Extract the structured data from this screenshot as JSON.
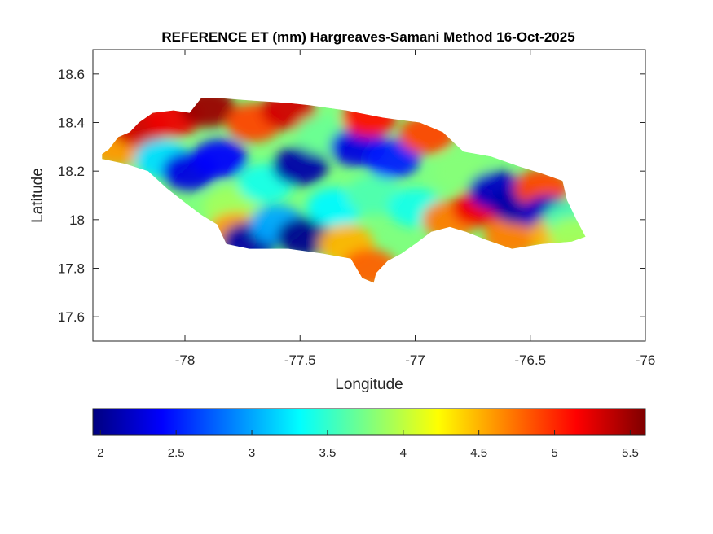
{
  "chart_data": {
    "type": "heatmap",
    "title": "REFERENCE ET (mm) Hargreaves-Samani Method  16-Oct-2025",
    "xlabel": "Longitude",
    "ylabel": "Latitude",
    "xlim": [
      -78.4,
      -76
    ],
    "ylim": [
      17.5,
      18.7
    ],
    "xticks": [
      -78,
      -77.5,
      -77,
      -76.5,
      -76
    ],
    "xtick_labels": [
      "-78",
      "-77.5",
      "-77",
      "-76.5",
      "-76"
    ],
    "yticks": [
      17.6,
      17.8,
      18,
      18.2,
      18.4,
      18.6
    ],
    "ytick_labels": [
      "17.6",
      "17.8",
      "18",
      "18.2",
      "18.4",
      "18.6"
    ],
    "grid": false,
    "colorbar": {
      "orientation": "horizontal",
      "placement": "bottom",
      "colormap": "jet",
      "range": [
        1.95,
        5.6
      ],
      "ticks": [
        2,
        2.5,
        3,
        3.5,
        4,
        4.5,
        5,
        5.5
      ],
      "tick_labels": [
        "2",
        "2.5",
        "3",
        "3.5",
        "4",
        "4.5",
        "5",
        "5.5"
      ],
      "colors": [
        "#00007f",
        "#0000ff",
        "#007fff",
        "#00ffff",
        "#7fff7f",
        "#ffff00",
        "#ff7f00",
        "#ff0000",
        "#7f0000"
      ]
    },
    "region_outline": [
      [
        -78.36,
        18.27
      ],
      [
        -78.33,
        18.29
      ],
      [
        -78.29,
        18.34
      ],
      [
        -78.24,
        18.36
      ],
      [
        -78.2,
        18.4
      ],
      [
        -78.14,
        18.44
      ],
      [
        -78.05,
        18.45
      ],
      [
        -77.98,
        18.44
      ],
      [
        -77.93,
        18.5
      ],
      [
        -77.84,
        18.5
      ],
      [
        -77.7,
        18.49
      ],
      [
        -77.55,
        18.48
      ],
      [
        -77.45,
        18.47
      ],
      [
        -77.3,
        18.45
      ],
      [
        -77.14,
        18.42
      ],
      [
        -76.98,
        18.4
      ],
      [
        -76.88,
        18.36
      ],
      [
        -76.79,
        18.28
      ],
      [
        -76.67,
        18.26
      ],
      [
        -76.55,
        18.22
      ],
      [
        -76.45,
        18.19
      ],
      [
        -76.36,
        18.16
      ],
      [
        -76.34,
        18.08
      ],
      [
        -76.3,
        18.0
      ],
      [
        -76.26,
        17.93
      ],
      [
        -76.32,
        17.91
      ],
      [
        -76.45,
        17.9
      ],
      [
        -76.58,
        17.88
      ],
      [
        -76.7,
        17.92
      ],
      [
        -76.78,
        17.95
      ],
      [
        -76.85,
        17.97
      ],
      [
        -76.93,
        17.95
      ],
      [
        -77.0,
        17.9
      ],
      [
        -77.06,
        17.86
      ],
      [
        -77.12,
        17.83
      ],
      [
        -77.17,
        17.78
      ],
      [
        -77.18,
        17.74
      ],
      [
        -77.23,
        17.76
      ],
      [
        -77.28,
        17.84
      ],
      [
        -77.4,
        17.86
      ],
      [
        -77.55,
        17.88
      ],
      [
        -77.72,
        17.88
      ],
      [
        -77.82,
        17.9
      ],
      [
        -77.86,
        17.98
      ],
      [
        -77.93,
        18.02
      ],
      [
        -78.0,
        18.07
      ],
      [
        -78.08,
        18.13
      ],
      [
        -78.16,
        18.2
      ],
      [
        -78.26,
        18.23
      ],
      [
        -78.36,
        18.25
      ]
    ],
    "values": [
      {
        "lon": -78.3,
        "lat": 18.3,
        "et": 4.6
      },
      {
        "lon": -78.2,
        "lat": 18.38,
        "et": 5.3
      },
      {
        "lon": -78.1,
        "lat": 18.25,
        "et": 3.2
      },
      {
        "lon": -78.05,
        "lat": 18.42,
        "et": 5.2
      },
      {
        "lon": -77.98,
        "lat": 18.2,
        "et": 2.3
      },
      {
        "lon": -77.9,
        "lat": 18.46,
        "et": 5.5
      },
      {
        "lon": -77.85,
        "lat": 18.25,
        "et": 2.4
      },
      {
        "lon": -77.8,
        "lat": 18.05,
        "et": 3.9
      },
      {
        "lon": -77.78,
        "lat": 17.95,
        "et": 4.6
      },
      {
        "lon": -77.72,
        "lat": 17.91,
        "et": 2.1
      },
      {
        "lon": -77.7,
        "lat": 18.4,
        "et": 4.9
      },
      {
        "lon": -77.65,
        "lat": 18.15,
        "et": 3.4
      },
      {
        "lon": -77.6,
        "lat": 17.98,
        "et": 3.0
      },
      {
        "lon": -77.55,
        "lat": 18.45,
        "et": 5.3
      },
      {
        "lon": -77.5,
        "lat": 18.22,
        "et": 2.1
      },
      {
        "lon": -77.48,
        "lat": 17.93,
        "et": 2.0
      },
      {
        "lon": -77.4,
        "lat": 18.35,
        "et": 3.7
      },
      {
        "lon": -77.35,
        "lat": 18.05,
        "et": 3.3
      },
      {
        "lon": -77.3,
        "lat": 17.9,
        "et": 4.5
      },
      {
        "lon": -77.25,
        "lat": 18.3,
        "et": 2.3
      },
      {
        "lon": -77.2,
        "lat": 18.42,
        "et": 5.1
      },
      {
        "lon": -77.18,
        "lat": 18.1,
        "et": 3.6
      },
      {
        "lon": -77.2,
        "lat": 17.8,
        "et": 4.8
      },
      {
        "lon": -77.1,
        "lat": 18.25,
        "et": 2.5
      },
      {
        "lon": -77.0,
        "lat": 18.05,
        "et": 3.4
      },
      {
        "lon": -76.95,
        "lat": 18.35,
        "et": 4.9
      },
      {
        "lon": -76.85,
        "lat": 18.0,
        "et": 4.7
      },
      {
        "lon": -76.8,
        "lat": 18.2,
        "et": 3.8
      },
      {
        "lon": -76.72,
        "lat": 18.05,
        "et": 5.2
      },
      {
        "lon": -76.65,
        "lat": 18.12,
        "et": 2.2
      },
      {
        "lon": -76.58,
        "lat": 17.93,
        "et": 4.7
      },
      {
        "lon": -76.55,
        "lat": 18.06,
        "et": 2.1
      },
      {
        "lon": -76.45,
        "lat": 18.13,
        "et": 4.9
      },
      {
        "lon": -76.42,
        "lat": 18.02,
        "et": 2.2
      },
      {
        "lon": -76.38,
        "lat": 17.94,
        "et": 4.5
      },
      {
        "lon": -76.32,
        "lat": 18.0,
        "et": 3.6
      },
      {
        "lon": -76.3,
        "lat": 17.93,
        "et": 3.9
      }
    ]
  }
}
